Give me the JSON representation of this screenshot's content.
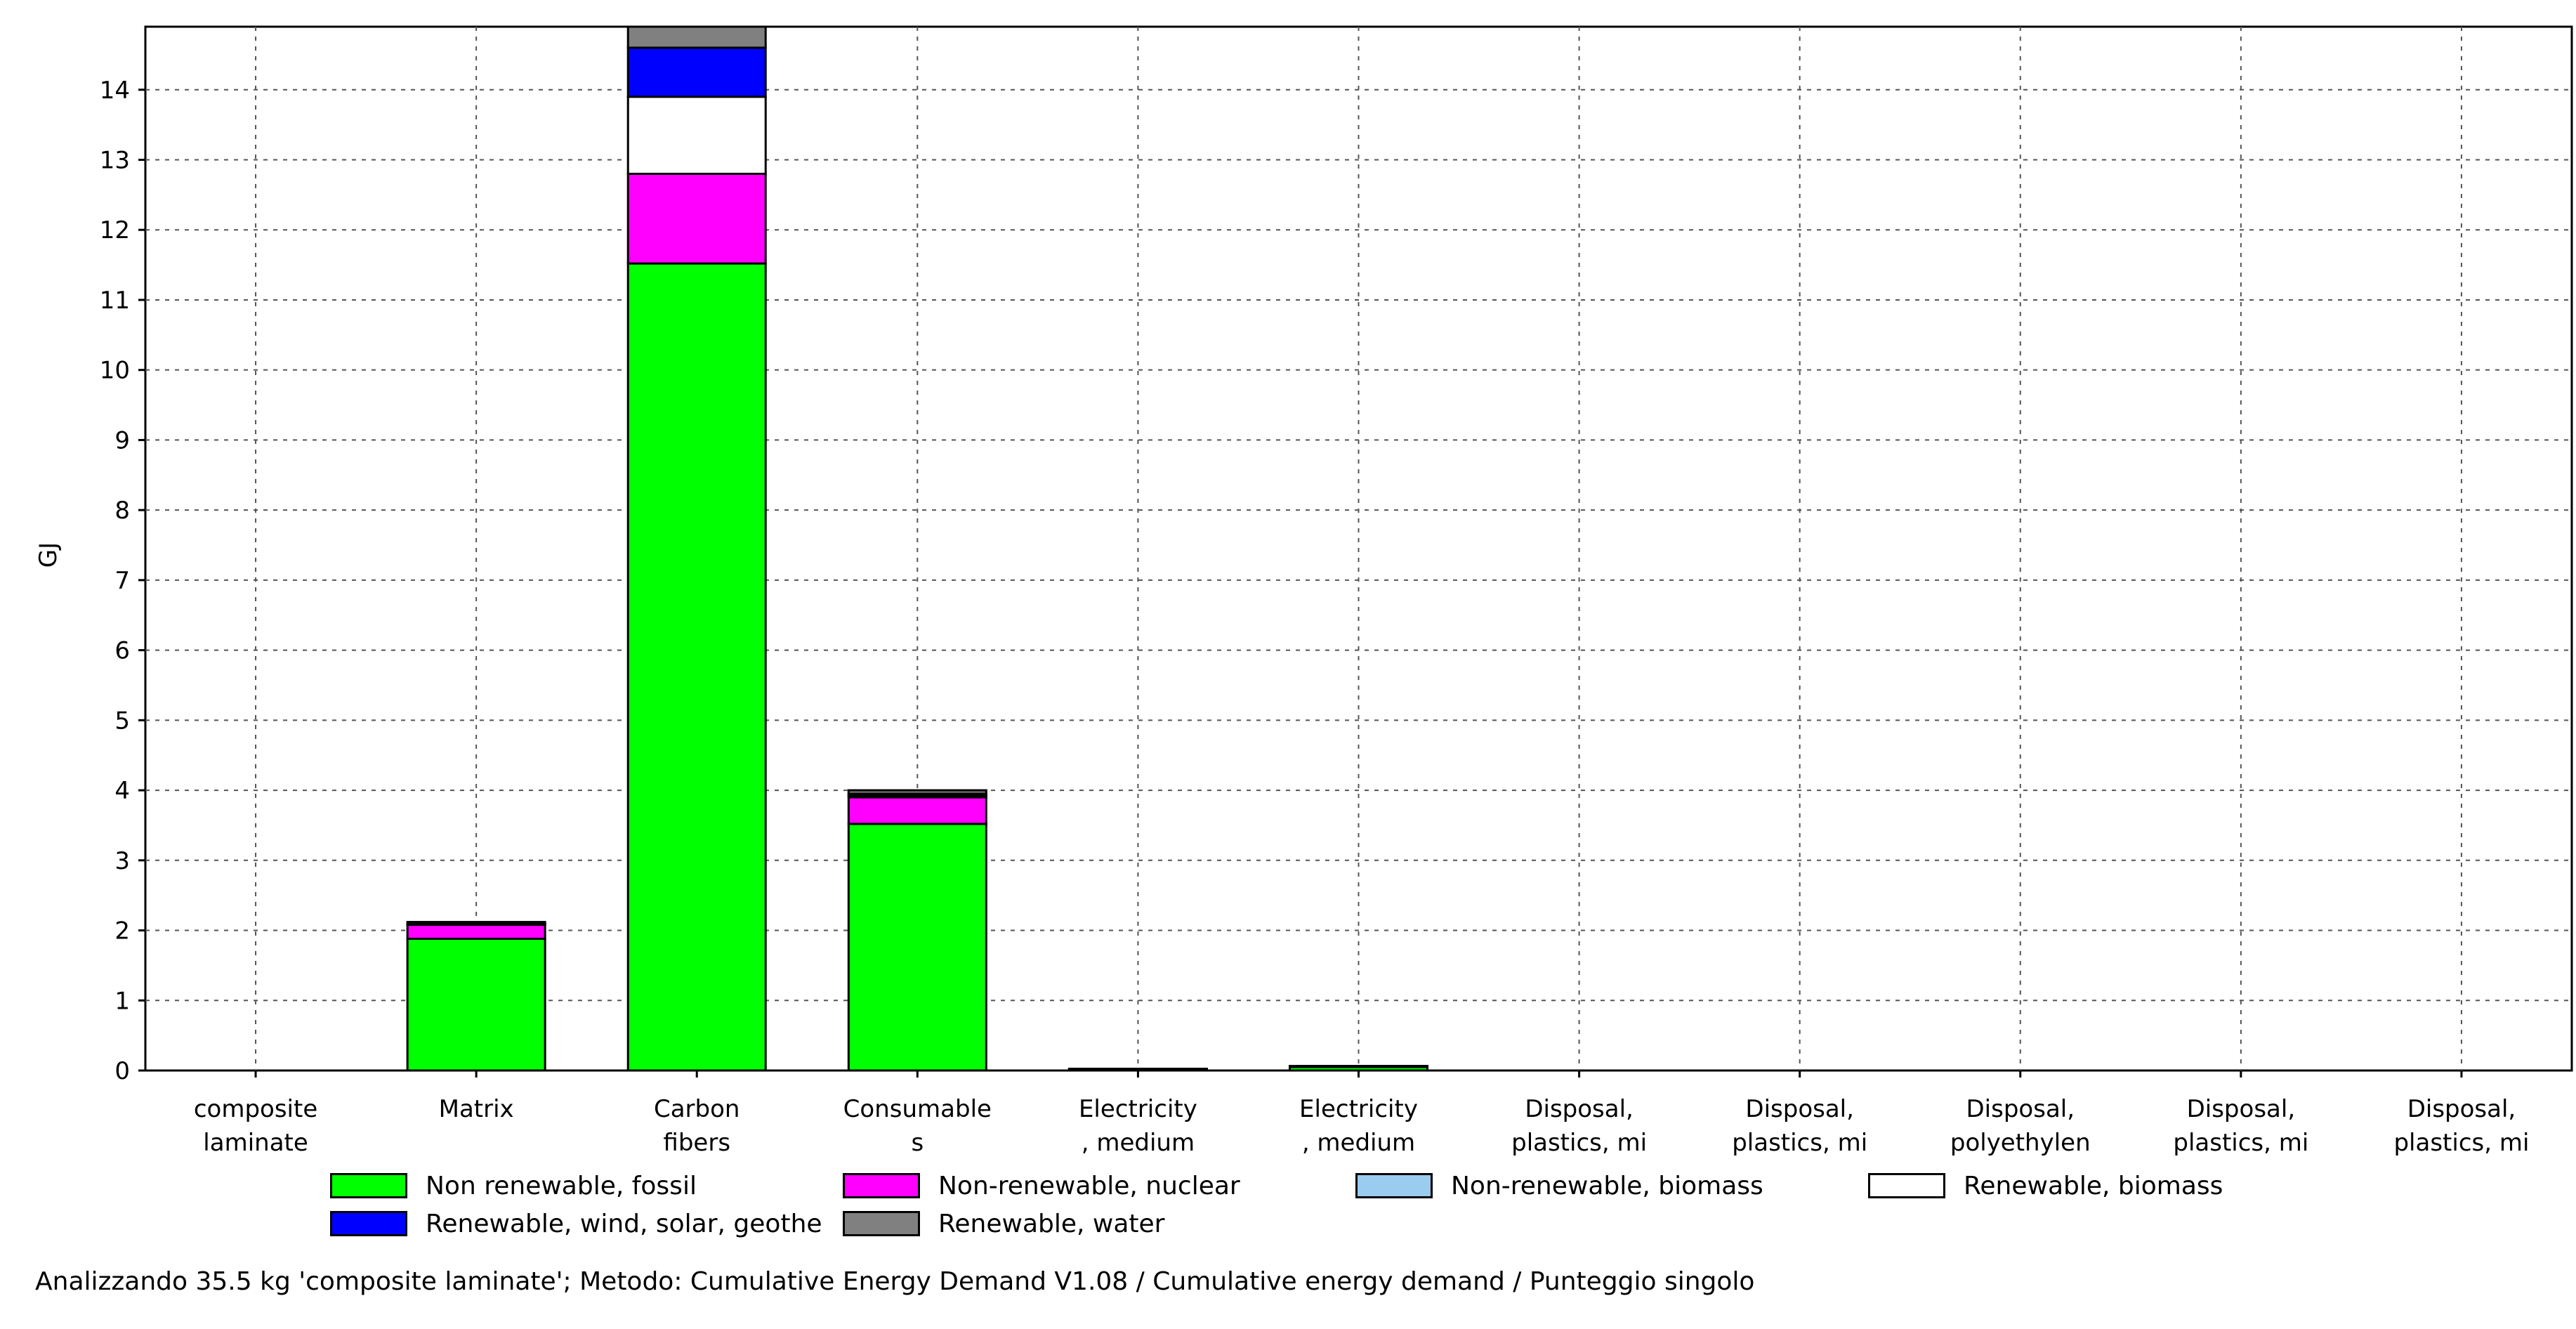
{
  "chart_data": {
    "type": "bar",
    "stacked": true,
    "ylabel": "GJ",
    "ylim": [
      0,
      14.9
    ],
    "yticks": [
      0,
      1,
      2,
      3,
      4,
      5,
      6,
      7,
      8,
      9,
      10,
      11,
      12,
      13,
      14
    ],
    "grid": true,
    "categories": [
      [
        "composite",
        "laminate"
      ],
      [
        "Matrix"
      ],
      [
        "Carbon",
        "fibers"
      ],
      [
        "Consumable",
        "s"
      ],
      [
        "Electricity",
        ", medium"
      ],
      [
        "Electricity",
        ", medium"
      ],
      [
        "Disposal,",
        "plastics, mi"
      ],
      [
        "Disposal,",
        "plastics, mi"
      ],
      [
        "Disposal,",
        "polyethylen"
      ],
      [
        "Disposal,",
        "plastics, mi"
      ],
      [
        "Disposal,",
        "plastics, mi"
      ]
    ],
    "series": [
      {
        "name": "Non renewable, fossil",
        "color": "#00ff00",
        "values": [
          0,
          1.88,
          11.52,
          3.52,
          0.02,
          0.05,
          0,
          0,
          0,
          0,
          0
        ]
      },
      {
        "name": "Non-renewable, nuclear",
        "color": "#ff00ff",
        "values": [
          0,
          0.2,
          1.28,
          0.38,
          0.003,
          0.01,
          0,
          0,
          0,
          0,
          0
        ]
      },
      {
        "name": "Non-renewable, biomass",
        "color": "#99ccee",
        "values": [
          0,
          0,
          0,
          0,
          0,
          0,
          0,
          0,
          0,
          0,
          0
        ]
      },
      {
        "name": "Renewable, biomass",
        "color": "#ffffff",
        "values": [
          0,
          0.01,
          1.1,
          0.03,
          0,
          0,
          0,
          0,
          0,
          0,
          0
        ]
      },
      {
        "name": "Renewable, wind, solar, geothe",
        "color": "#0000ff",
        "values": [
          0,
          0.01,
          0.7,
          0.02,
          0,
          0,
          0,
          0,
          0,
          0,
          0
        ]
      },
      {
        "name": "Renewable, water",
        "color": "#808080",
        "values": [
          0,
          0.02,
          0.6,
          0.05,
          0.001,
          0.005,
          0,
          0,
          0,
          0,
          0
        ]
      }
    ]
  },
  "caption": "Analizzando 35.5 kg 'composite laminate';  Metodo: Cumulative Energy Demand V1.08 / Cumulative energy demand / Punteggio singolo"
}
